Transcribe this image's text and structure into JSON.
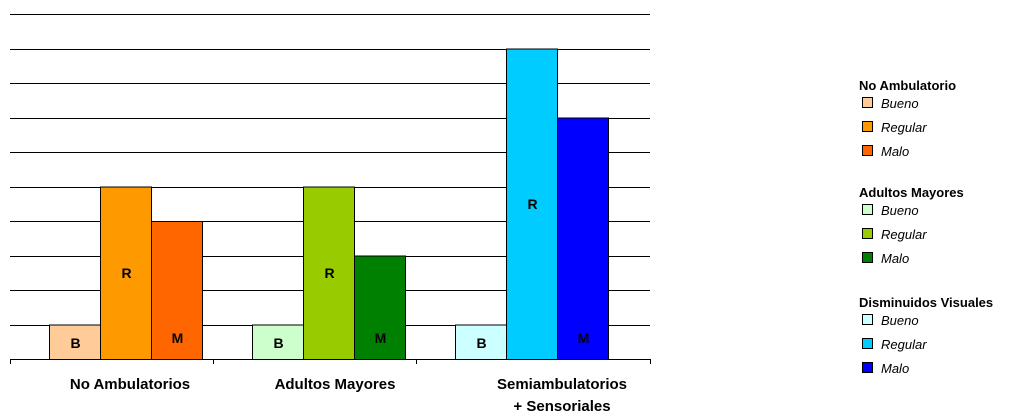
{
  "chart_data": {
    "type": "bar",
    "title": "",
    "xlabel": "",
    "ylabel": "",
    "ylim": [
      0,
      10
    ],
    "grid": true,
    "legend_position": "right",
    "categories": [
      {
        "label_lines": [
          "No  Ambulatorios"
        ]
      },
      {
        "label_lines": [
          "Adultos Mayores"
        ]
      },
      {
        "label_lines": [
          "Semiambulatorios",
          "+ Sensoriales"
        ]
      }
    ],
    "groups": [
      {
        "legend_title": "No Ambulatorio",
        "bars": [
          {
            "name": "Bueno",
            "label": "B",
            "value": 1,
            "color": "#ffcc99"
          },
          {
            "name": "Regular",
            "label": "R",
            "value": 5,
            "color": "#ff9900"
          },
          {
            "name": "Malo",
            "label": "M",
            "value": 4,
            "color": "#ff6600"
          }
        ]
      },
      {
        "legend_title": "Adultos Mayores",
        "bars": [
          {
            "name": "Bueno",
            "label": "B",
            "value": 1,
            "color": "#ccffcc"
          },
          {
            "name": "Regular",
            "label": "R",
            "value": 5,
            "color": "#99cc00"
          },
          {
            "name": "Malo",
            "label": "M",
            "value": 3,
            "color": "#008000"
          }
        ]
      },
      {
        "legend_title": "Disminuidos Visuales",
        "bars": [
          {
            "name": "Bueno",
            "label": "B",
            "value": 1,
            "color": "#ccffff"
          },
          {
            "name": "Regular",
            "label": "R",
            "value": 9,
            "color": "#00ccff"
          },
          {
            "name": "Malo",
            "label": "M",
            "value": 7,
            "color": "#0000ff"
          }
        ]
      }
    ]
  }
}
